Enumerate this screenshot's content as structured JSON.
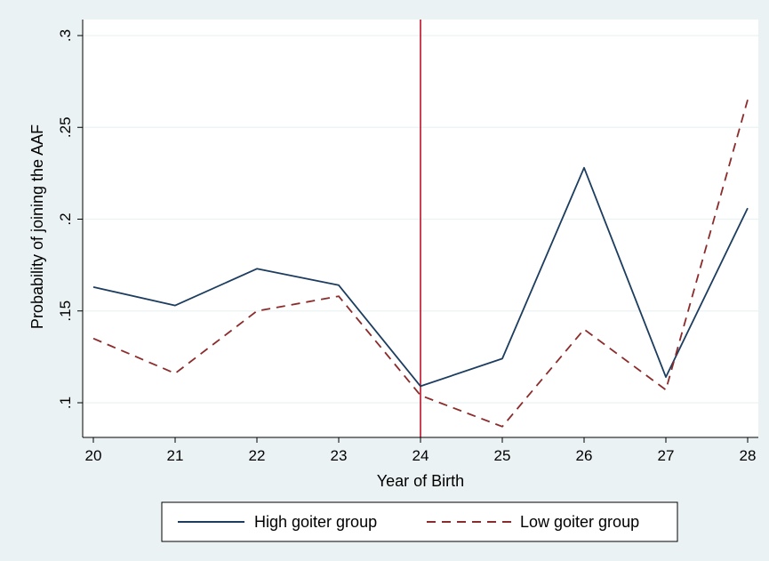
{
  "chart_data": {
    "type": "line",
    "title": "",
    "xlabel": "Year of Birth",
    "ylabel": "Probability of joining the AAF",
    "x": [
      20,
      21,
      22,
      23,
      24,
      25,
      26,
      27,
      28
    ],
    "x_tick_labels": [
      "20",
      "21",
      "22",
      "23",
      "24",
      "25",
      "26",
      "27",
      "28"
    ],
    "y_tick_values": [
      0.1,
      0.15,
      0.2,
      0.25,
      0.3
    ],
    "y_tick_labels": [
      ".1",
      ".15",
      ".2",
      ".25",
      ".3"
    ],
    "xlim": [
      20,
      28
    ],
    "ylim": [
      0.08,
      0.3
    ],
    "grid": "horizontal",
    "legend_position": "bottom",
    "vertical_reference_line": {
      "x": 24,
      "color": "#c0102a"
    },
    "series": [
      {
        "name": "High goiter group",
        "style": "solid",
        "color": "#1c3d5f",
        "values": [
          0.163,
          0.153,
          0.173,
          0.164,
          0.109,
          0.124,
          0.228,
          0.114,
          0.206
        ]
      },
      {
        "name": "Low goiter group",
        "style": "dashed",
        "color": "#8c2b2b",
        "values": [
          0.135,
          0.116,
          0.15,
          0.158,
          0.104,
          0.087,
          0.14,
          0.107,
          0.265
        ]
      }
    ],
    "colors": {
      "background": "#eaf2f3",
      "plot_background": "#ffffff",
      "grid": "#eaf2f3"
    }
  }
}
